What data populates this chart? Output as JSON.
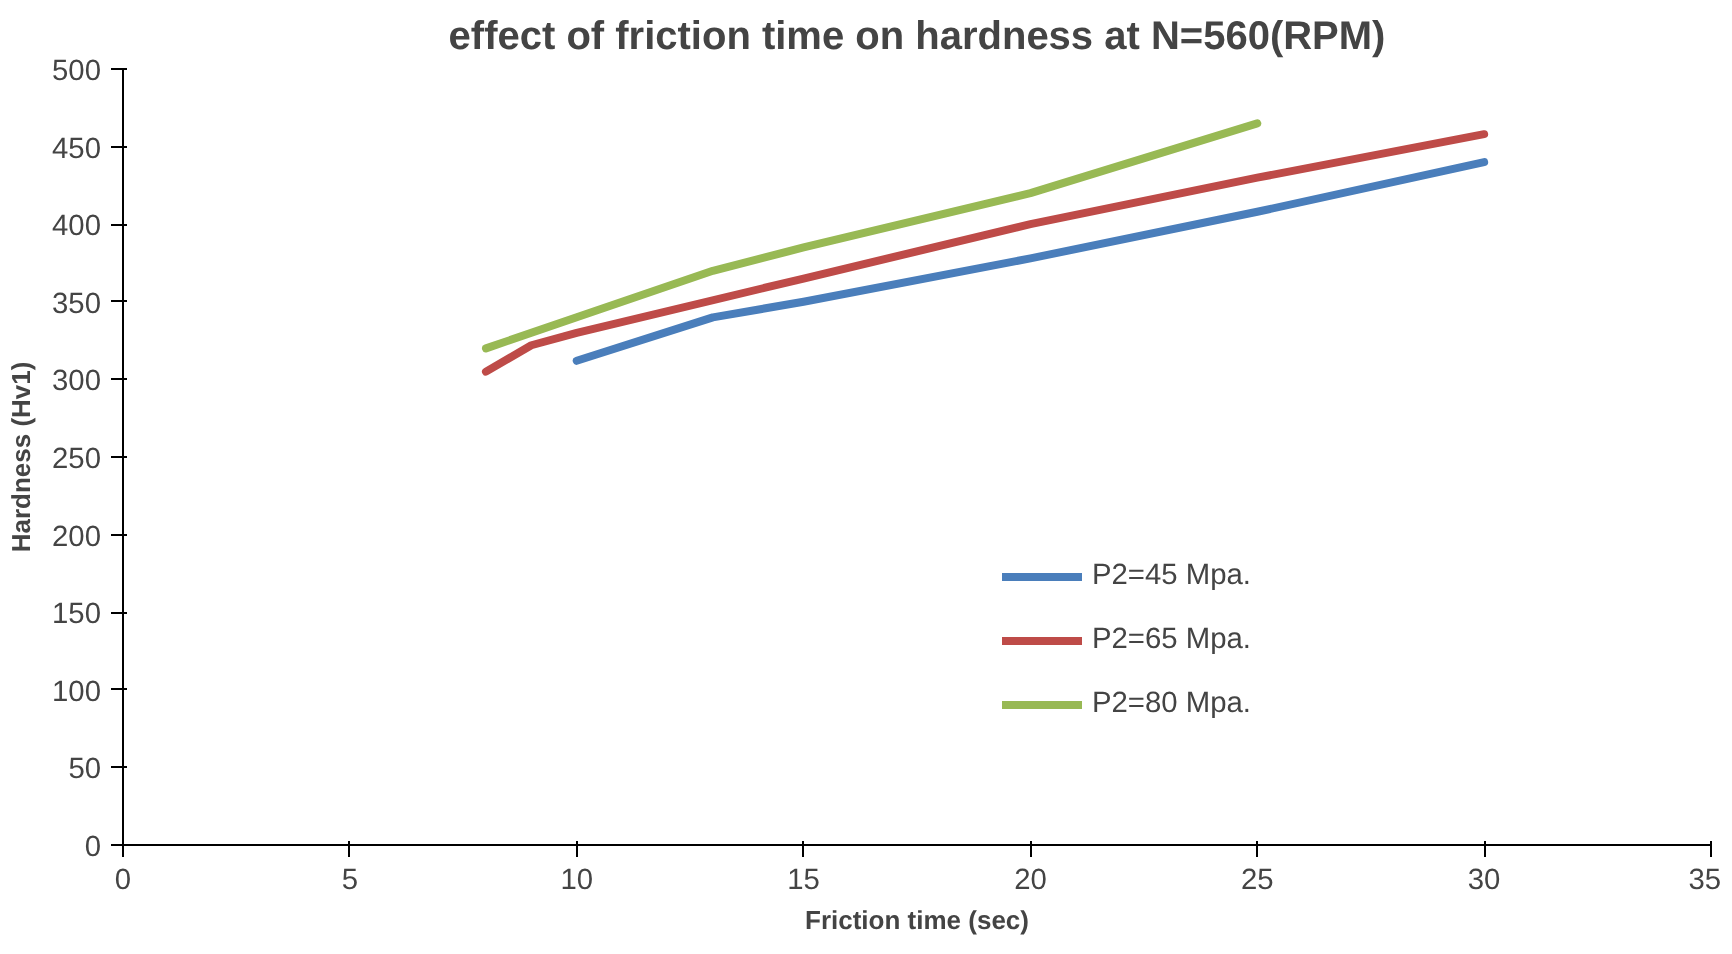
{
  "chart_data": {
    "type": "line",
    "title": "effect of friction time on hardness at N=560(RPM)",
    "xlabel": "Friction time (sec)",
    "ylabel": "Hardness (Hv1)",
    "xlim": [
      0,
      35
    ],
    "xticks": [
      0,
      5,
      10,
      15,
      20,
      25,
      30,
      35
    ],
    "ylim": [
      0,
      500
    ],
    "yticks": [
      0,
      50,
      100,
      150,
      200,
      250,
      300,
      350,
      400,
      450,
      500
    ],
    "grid": false,
    "legend": "right",
    "marker": "none",
    "line_style": "solid",
    "series": [
      {
        "name": "P2=45 Mpa.",
        "color": "#4a7ebb",
        "x": [
          10,
          13,
          15,
          20,
          25,
          30
        ],
        "values": [
          312,
          340,
          350,
          378,
          408,
          440
        ]
      },
      {
        "name": "P2=65 Mpa.",
        "color": "#be4b48",
        "x": [
          8,
          9,
          10,
          15,
          20,
          25,
          30
        ],
        "values": [
          305,
          322,
          330,
          365,
          400,
          430,
          458
        ]
      },
      {
        "name": "P2=80 Mpa.",
        "color": "#98b954",
        "x": [
          8,
          10,
          13,
          15,
          20,
          25
        ],
        "values": [
          320,
          340,
          370,
          385,
          420,
          465
        ]
      }
    ]
  }
}
